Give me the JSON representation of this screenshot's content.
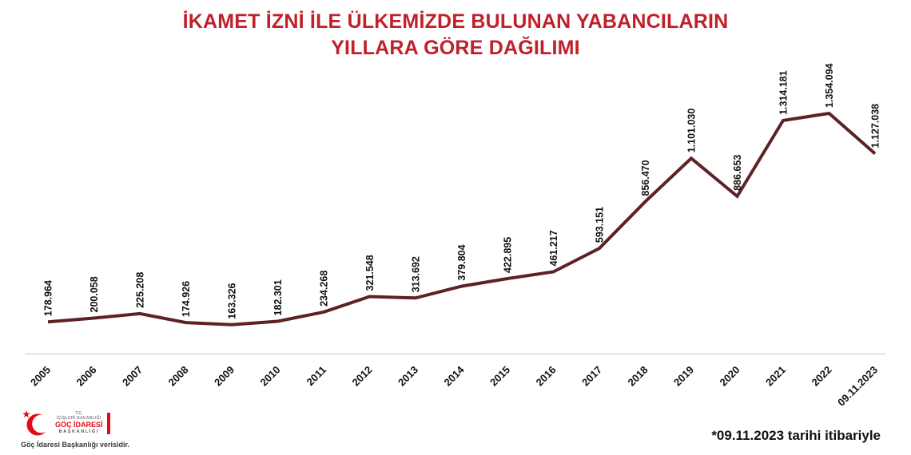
{
  "title": {
    "line1": "İKAMET İZNİ İLE ÜLKEMİZDE BULUNAN YABANCILARIN",
    "line2": "YILLARA GÖRE DAĞILIMI"
  },
  "chart_data": {
    "type": "line",
    "title": "İKAMET İZNİ İLE ÜLKEMİZDE BULUNAN YABANCILARIN YILLARA GÖRE DAĞILIMI",
    "xlabel": "",
    "ylabel": "",
    "categories": [
      "2005",
      "2006",
      "2007",
      "2008",
      "2009",
      "2010",
      "2011",
      "2012",
      "2013",
      "2014",
      "2015",
      "2016",
      "2017",
      "2018",
      "2019",
      "2020",
      "2021",
      "2022",
      "09.11.2023"
    ],
    "values": [
      178964,
      200058,
      225208,
      174926,
      163326,
      182301,
      234268,
      321548,
      313692,
      379804,
      422895,
      461217,
      593151,
      856470,
      1101030,
      886653,
      1314181,
      1354094,
      1127038
    ],
    "value_labels": [
      "178.964",
      "200.058",
      "225.208",
      "174.926",
      "163.326",
      "182.301",
      "234.268",
      "321.548",
      "313.692",
      "379.804",
      "422.895",
      "461.217",
      "593.151",
      "856.470",
      "1.101.030",
      "886.653",
      "1.314.181",
      "1.354.094",
      "1.127.038"
    ],
    "ylim": [
      0,
      1400000
    ],
    "grid": false,
    "legend": "none",
    "markers": false,
    "data_labels_rotation": 90,
    "x_labels_rotation": 45
  },
  "footer": {
    "note": "*09.11.2023 tarihi itibariyle",
    "logo": {
      "icon": "crescent-star-icon",
      "line1": "T.C.",
      "line2": "İÇİŞLERİ BAKANLIĞI",
      "line3": "GÖÇ İDARESİ",
      "line4": "BAŞKANLIĞI",
      "caption": "Göç İdaresi Başkanlığı verisidir."
    }
  },
  "colors": {
    "title_red": "#bf202a",
    "line": "#5e2226",
    "axis": "#d9d9d9",
    "label": "#111111",
    "logo_red": "#e30a17"
  }
}
